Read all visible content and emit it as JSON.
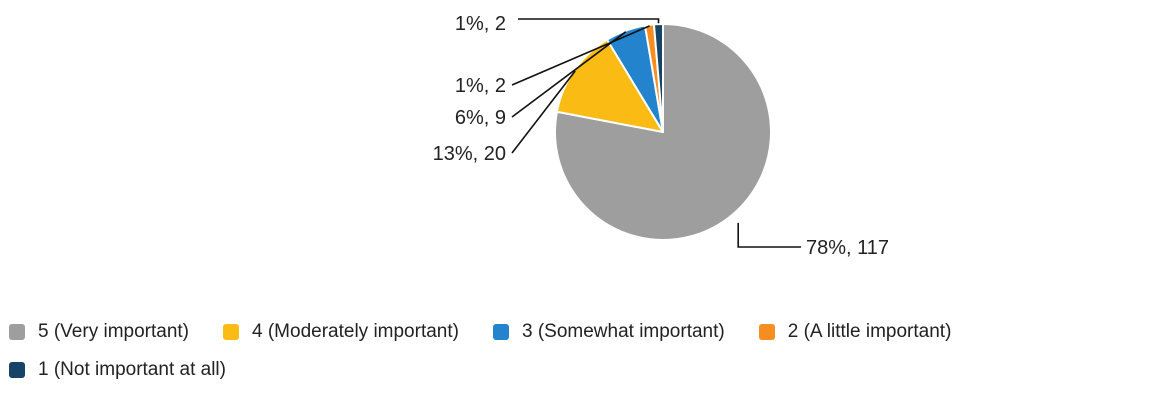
{
  "chart_data": {
    "type": "pie",
    "title": "",
    "slices": [
      {
        "label": "5 (Very important)",
        "value": 117,
        "percent_label": "78%, 117",
        "color": "#9e9e9e"
      },
      {
        "label": "4 (Moderately important)",
        "value": 20,
        "percent_label": "13%, 20",
        "color": "#fbbb15"
      },
      {
        "label": "3 (Somewhat important)",
        "value": 9,
        "percent_label": "6%, 9",
        "color": "#2384cd"
      },
      {
        "label": "2 (A little important)",
        "value": 2,
        "percent_label": "1%, 2",
        "color": "#f58d20"
      },
      {
        "label": "1 (Not important at all)",
        "value": 2,
        "percent_label": "1%, 2",
        "color": "#174466"
      }
    ],
    "legend_position": "bottom"
  }
}
